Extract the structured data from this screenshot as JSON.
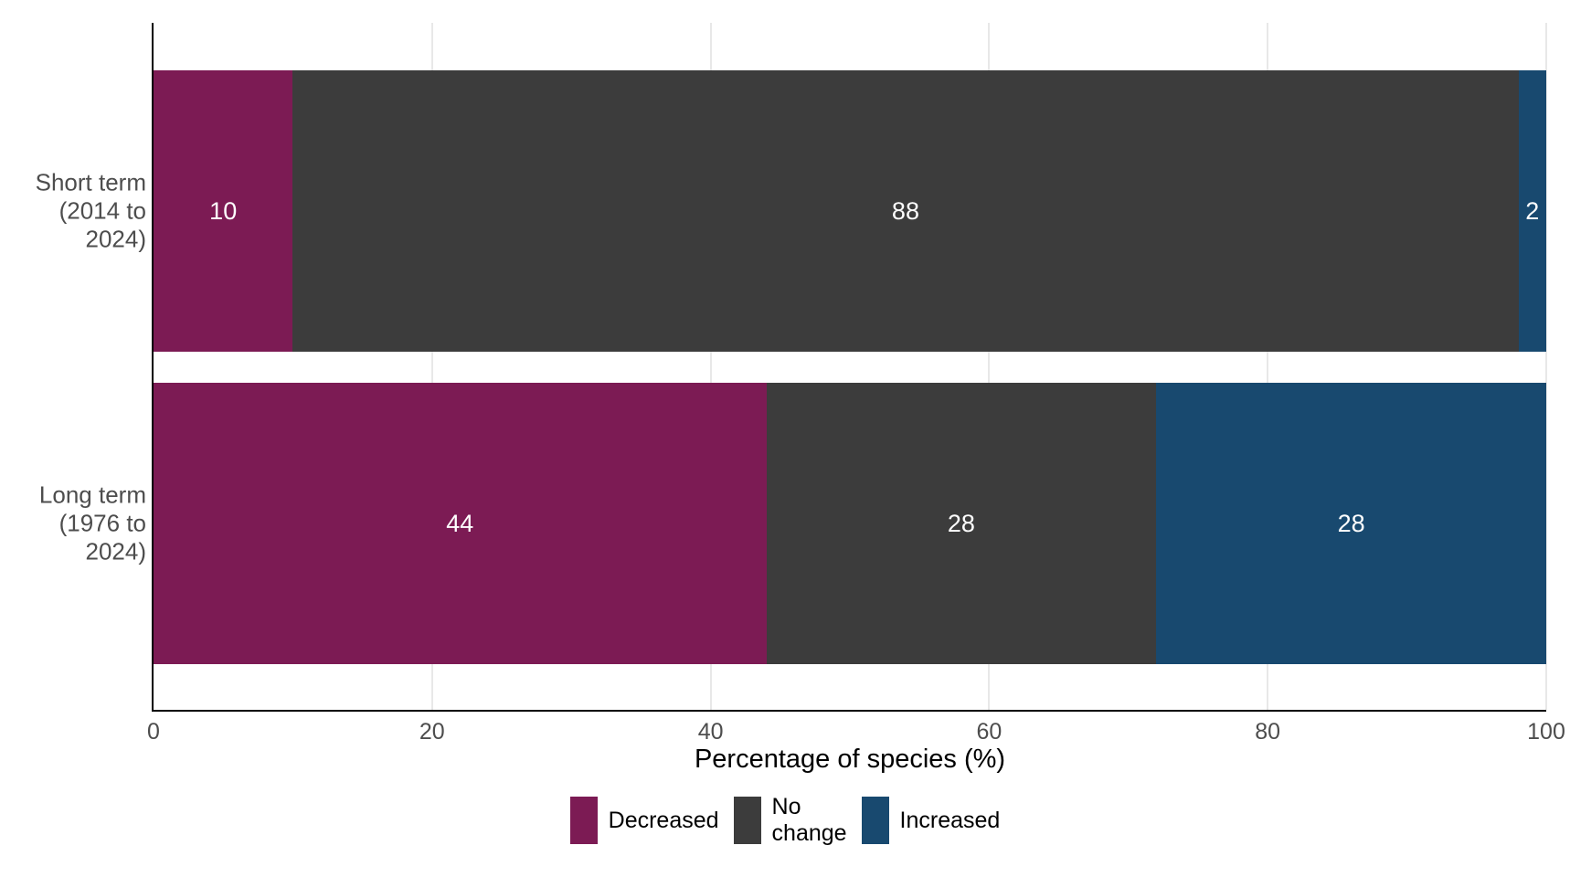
{
  "chart_data": {
    "type": "bar",
    "orientation": "horizontal",
    "stacked": true,
    "categories": [
      "Short term (2014 to 2024)",
      "Long term (1976 to 2024)"
    ],
    "category_label_lines": [
      [
        "Short term",
        "(2014 to",
        "2024)"
      ],
      [
        "Long term",
        "(1976 to",
        "2024)"
      ]
    ],
    "series": [
      {
        "name": "Decreased",
        "color": "#7c1b54",
        "values": [
          10,
          44
        ]
      },
      {
        "name": "No change",
        "color": "#3c3c3c",
        "values": [
          88,
          28
        ]
      },
      {
        "name": "Increased",
        "color": "#18496f",
        "values": [
          2,
          28
        ]
      }
    ],
    "bar_value_labels": [
      [
        "10",
        "88",
        "2"
      ],
      [
        "44",
        "28",
        "28"
      ]
    ],
    "xlabel": "Percentage of species (%)",
    "xlim": [
      0,
      100
    ],
    "xticks": [
      "0",
      "20",
      "40",
      "60",
      "80",
      "100"
    ],
    "grid": "vertical light gray lines at ticks",
    "legend_position": "bottom center",
    "legend_entries": [
      "Decreased",
      "No change",
      "Increased"
    ]
  },
  "style": {
    "bar_label_color": "#ffffff",
    "axis_text_color": "#4d4d4d",
    "axis_line_color": "#000000",
    "gridline_color": "#e8e8e8",
    "background_color": "#ffffff"
  }
}
